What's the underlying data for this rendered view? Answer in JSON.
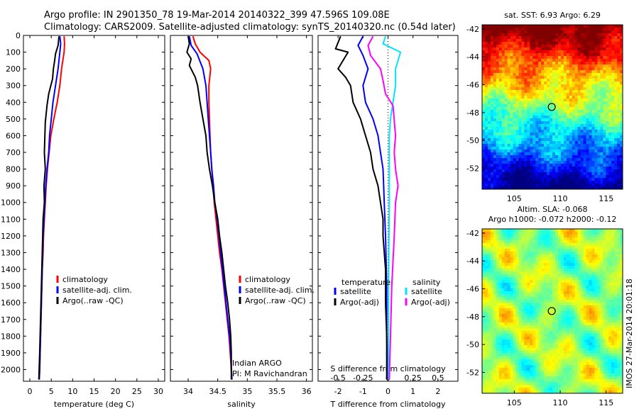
{
  "figure": {
    "title_line1": "Argo profile: IN 2901350_78 19-Mar-2014 20140322_399 47.596S 109.08E",
    "title_line2": "Climatology: CARS2009. Satellite-adjusted climatology: synTS_20140320.nc (0.54d later)",
    "credit": "IMOS 27-Mar-2014 20:01:18",
    "colors": {
      "climatology": "#ff0000",
      "satellite": "#0000ff",
      "argo": "#000000",
      "argo_adj_salinity": "#ff00ff",
      "satellite_salinity": "#00e5ff"
    }
  },
  "chart_data": [
    {
      "id": "temperature",
      "type": "line",
      "xlabel": "temperature (deg C)",
      "ylabel": "",
      "xlim": [
        -1.5,
        31.5
      ],
      "ylim": [
        2070,
        0
      ],
      "xticks": [
        0,
        5,
        10,
        15,
        20,
        25,
        30
      ],
      "yticks": [
        0,
        100,
        200,
        300,
        400,
        500,
        600,
        700,
        800,
        900,
        1000,
        1100,
        1200,
        1300,
        1400,
        1500,
        1600,
        1700,
        1800,
        1900,
        2000
      ],
      "legend": [
        "climatology",
        "satellite-adj. clim.",
        "Argo(..raw -QC)"
      ],
      "series": [
        {
          "name": "climatology",
          "color": "#ff0000",
          "points": [
            [
              8.0,
              5
            ],
            [
              8.1,
              50
            ],
            [
              8.0,
              100
            ],
            [
              7.4,
              200
            ],
            [
              7.0,
              300
            ],
            [
              6.4,
              400
            ],
            [
              5.6,
              500
            ],
            [
              4.9,
              600
            ],
            [
              4.5,
              700
            ],
            [
              4.1,
              800
            ],
            [
              3.8,
              900
            ],
            [
              3.6,
              1000
            ],
            [
              3.4,
              1100
            ],
            [
              3.2,
              1200
            ],
            [
              3.1,
              1300
            ],
            [
              2.9,
              1400
            ],
            [
              2.8,
              1500
            ],
            [
              2.7,
              1600
            ],
            [
              2.6,
              1700
            ],
            [
              2.5,
              1800
            ],
            [
              2.4,
              1900
            ],
            [
              2.3,
              2000
            ],
            [
              2.2,
              2060
            ]
          ]
        },
        {
          "name": "satellite-adj. clim.",
          "color": "#0000ff",
          "points": [
            [
              7.0,
              5
            ],
            [
              7.2,
              50
            ],
            [
              7.0,
              100
            ],
            [
              6.6,
              200
            ],
            [
              6.0,
              300
            ],
            [
              5.4,
              400
            ],
            [
              5.0,
              500
            ],
            [
              4.6,
              600
            ],
            [
              4.4,
              700
            ],
            [
              4.0,
              800
            ],
            [
              3.7,
              900
            ],
            [
              3.5,
              1000
            ],
            [
              3.3,
              1100
            ],
            [
              3.1,
              1200
            ],
            [
              3.0,
              1300
            ],
            [
              2.9,
              1400
            ],
            [
              2.8,
              1500
            ],
            [
              2.7,
              1600
            ],
            [
              2.6,
              1700
            ],
            [
              2.5,
              1800
            ],
            [
              2.4,
              1900
            ],
            [
              2.3,
              2000
            ],
            [
              2.2,
              2060
            ]
          ]
        },
        {
          "name": "Argo(..raw -QC)",
          "color": "#000000",
          "points": [
            [
              6.8,
              5
            ],
            [
              6.6,
              60
            ],
            [
              6.0,
              110
            ],
            [
              5.8,
              150
            ],
            [
              5.5,
              200
            ],
            [
              5.3,
              260
            ],
            [
              4.4,
              350
            ],
            [
              4.0,
              420
            ],
            [
              3.6,
              520
            ],
            [
              3.5,
              600
            ],
            [
              3.4,
              700
            ],
            [
              3.6,
              800
            ],
            [
              3.3,
              900
            ],
            [
              3.4,
              1000
            ],
            [
              3.1,
              1100
            ],
            [
              3.0,
              1200
            ],
            [
              2.9,
              1300
            ],
            [
              2.8,
              1400
            ],
            [
              2.7,
              1500
            ],
            [
              2.6,
              1600
            ],
            [
              2.5,
              1700
            ],
            [
              2.4,
              1800
            ],
            [
              2.3,
              1900
            ],
            [
              2.2,
              1980
            ],
            [
              2.1,
              2060
            ]
          ]
        }
      ]
    },
    {
      "id": "salinity",
      "type": "line",
      "xlabel": "salinity",
      "ylabel": "",
      "xlim": [
        33.7,
        36.1
      ],
      "ylim": [
        2070,
        0
      ],
      "xticks": [
        34,
        34.5,
        35,
        35.5,
        36
      ],
      "xticklabels": [
        "34",
        "34.5",
        "35",
        "35.5",
        "36"
      ],
      "legend": [
        "climatology",
        "satellite-adj. clim.",
        "Argo(..raw -QC)"
      ],
      "annotation": [
        "Indian ARGO",
        "PI: M Ravichandran"
      ],
      "series": [
        {
          "name": "climatology",
          "color": "#ff0000",
          "points": [
            [
              34.08,
              5
            ],
            [
              34.12,
              50
            ],
            [
              34.2,
              100
            ],
            [
              34.35,
              150
            ],
            [
              34.38,
              200
            ],
            [
              34.35,
              300
            ],
            [
              34.35,
              400
            ],
            [
              34.36,
              500
            ],
            [
              34.37,
              600
            ],
            [
              34.38,
              700
            ],
            [
              34.4,
              800
            ],
            [
              34.42,
              900
            ],
            [
              34.44,
              1000
            ],
            [
              34.47,
              1100
            ],
            [
              34.5,
              1200
            ],
            [
              34.53,
              1300
            ],
            [
              34.57,
              1400
            ],
            [
              34.6,
              1500
            ],
            [
              34.63,
              1600
            ],
            [
              34.66,
              1700
            ],
            [
              34.69,
              1800
            ],
            [
              34.71,
              1900
            ],
            [
              34.73,
              2000
            ],
            [
              34.74,
              2060
            ]
          ]
        },
        {
          "name": "satellite-adj. clim.",
          "color": "#0000ff",
          "points": [
            [
              34.02,
              5
            ],
            [
              34.05,
              60
            ],
            [
              34.15,
              110
            ],
            [
              34.25,
              200
            ],
            [
              34.3,
              300
            ],
            [
              34.32,
              400
            ],
            [
              34.34,
              500
            ],
            [
              34.36,
              600
            ],
            [
              34.38,
              700
            ],
            [
              34.4,
              800
            ],
            [
              34.43,
              900
            ],
            [
              34.45,
              1000
            ],
            [
              34.49,
              1100
            ],
            [
              34.52,
              1200
            ],
            [
              34.55,
              1300
            ],
            [
              34.58,
              1400
            ],
            [
              34.61,
              1500
            ],
            [
              34.64,
              1600
            ],
            [
              34.67,
              1700
            ],
            [
              34.7,
              1800
            ],
            [
              34.72,
              1900
            ],
            [
              34.73,
              2000
            ],
            [
              34.74,
              2060
            ]
          ]
        },
        {
          "name": "Argo(..raw -QC)",
          "color": "#000000",
          "points": [
            [
              34.0,
              5
            ],
            [
              34.02,
              50
            ],
            [
              33.98,
              100
            ],
            [
              34.05,
              140
            ],
            [
              34.02,
              180
            ],
            [
              34.12,
              250
            ],
            [
              34.16,
              300
            ],
            [
              34.2,
              400
            ],
            [
              34.25,
              500
            ],
            [
              34.3,
              600
            ],
            [
              34.32,
              700
            ],
            [
              34.36,
              800
            ],
            [
              34.41,
              900
            ],
            [
              34.45,
              1000
            ],
            [
              34.5,
              1100
            ],
            [
              34.53,
              1200
            ],
            [
              34.57,
              1300
            ],
            [
              34.6,
              1400
            ],
            [
              34.63,
              1500
            ],
            [
              34.67,
              1600
            ],
            [
              34.7,
              1700
            ],
            [
              34.72,
              1800
            ],
            [
              34.73,
              1900
            ],
            [
              34.73,
              2000
            ],
            [
              34.73,
              2060
            ]
          ]
        }
      ]
    },
    {
      "id": "difference",
      "type": "line",
      "xlabel": "T difference from climatology",
      "top_label": "S difference from climatology",
      "xlim": [
        -2.8,
        2.8
      ],
      "ylim": [
        2070,
        0
      ],
      "xticks": [
        -2,
        -1,
        0,
        1,
        2
      ],
      "xticklabels": [
        "-2",
        "-1",
        "0",
        "1",
        "2"
      ],
      "top_xticks": [
        -2,
        -1,
        0,
        1,
        2
      ],
      "top_xticklabels": [
        "-0.5",
        "-0.25",
        "0",
        "0.25",
        "0.5"
      ],
      "legend_headers": [
        "temperature",
        "salinity"
      ],
      "legend": [
        "satellite",
        "Argo(-adj)",
        "satellite",
        "Argo(-adj)"
      ],
      "series": [
        {
          "name": "temperature satellite",
          "color": "#0000ff",
          "points": [
            [
              -1.0,
              5
            ],
            [
              -1.2,
              60
            ],
            [
              -1.0,
              120
            ],
            [
              -0.8,
              200
            ],
            [
              -1.0,
              300
            ],
            [
              -0.9,
              400
            ],
            [
              -0.6,
              500
            ],
            [
              -0.4,
              600
            ],
            [
              -0.3,
              700
            ],
            [
              -0.2,
              800
            ],
            [
              -0.15,
              1000
            ],
            [
              -0.1,
              1200
            ],
            [
              -0.05,
              1500
            ],
            [
              -0.05,
              1800
            ],
            [
              0,
              2060
            ]
          ]
        },
        {
          "name": "temperature Argo(-adj)",
          "color": "#000000",
          "points": [
            [
              -1.9,
              5
            ],
            [
              -2.1,
              80
            ],
            [
              -1.6,
              100
            ],
            [
              -2.0,
              200
            ],
            [
              -1.7,
              250
            ],
            [
              -1.5,
              300
            ],
            [
              -1.4,
              400
            ],
            [
              -1.1,
              500
            ],
            [
              -0.9,
              600
            ],
            [
              -0.7,
              700
            ],
            [
              -0.6,
              800
            ],
            [
              -0.4,
              900
            ],
            [
              -0.3,
              1000
            ],
            [
              -0.2,
              1100
            ],
            [
              -0.2,
              1200
            ],
            [
              -0.1,
              1400
            ],
            [
              -0.1,
              1600
            ],
            [
              -0.05,
              1800
            ],
            [
              -0.05,
              2060
            ]
          ]
        },
        {
          "name": "salinity satellite",
          "color": "#00e5ff",
          "points": [
            [
              -0.1,
              5
            ],
            [
              -0.2,
              50
            ],
            [
              0.5,
              100
            ],
            [
              0.3,
              200
            ],
            [
              0.3,
              300
            ],
            [
              0.2,
              400
            ],
            [
              0.1,
              500
            ],
            [
              0.05,
              600
            ],
            [
              0.05,
              800
            ],
            [
              0.05,
              1000
            ],
            [
              0.03,
              1300
            ],
            [
              0.02,
              1600
            ],
            [
              0.02,
              1900
            ],
            [
              0.02,
              2060
            ]
          ]
        },
        {
          "name": "salinity Argo(-adj)",
          "color": "#ff00ff",
          "points": [
            [
              -0.6,
              5
            ],
            [
              -0.8,
              60
            ],
            [
              -0.7,
              120
            ],
            [
              -0.3,
              200
            ],
            [
              -0.2,
              270
            ],
            [
              -0.1,
              350
            ],
            [
              0.2,
              420
            ],
            [
              0.3,
              600
            ],
            [
              0.25,
              700
            ],
            [
              0.3,
              800
            ],
            [
              0.4,
              900
            ],
            [
              0.3,
              1000
            ],
            [
              0.25,
              1200
            ],
            [
              0.15,
              1500
            ],
            [
              0.1,
              1800
            ],
            [
              0.05,
              2060
            ]
          ]
        }
      ]
    }
  ],
  "maps": [
    {
      "id": "sst-map",
      "title_lines": [
        "sat. SST: 6.93 Argo: 6.29"
      ],
      "xticks": [
        105,
        110,
        115
      ],
      "yticks": [
        -42,
        -44,
        -46,
        -48,
        -50,
        -52
      ],
      "xlim": [
        101.5,
        116.8
      ],
      "ylim": [
        -53.5,
        -41.7
      ],
      "marker": [
        109.08,
        -47.596
      ],
      "kind": "sst"
    },
    {
      "id": "sla-map",
      "title_lines": [
        "Altim. SLA: -0.068",
        "Argo h1000: -0.072 h2000: -0.12"
      ],
      "xticks": [
        105,
        110,
        115
      ],
      "yticks": [
        -42,
        -44,
        -46,
        -48,
        -50,
        -52
      ],
      "xlim": [
        101.5,
        116.8
      ],
      "ylim": [
        -53.5,
        -41.7
      ],
      "marker": [
        109.08,
        -47.596
      ],
      "kind": "sla"
    }
  ]
}
